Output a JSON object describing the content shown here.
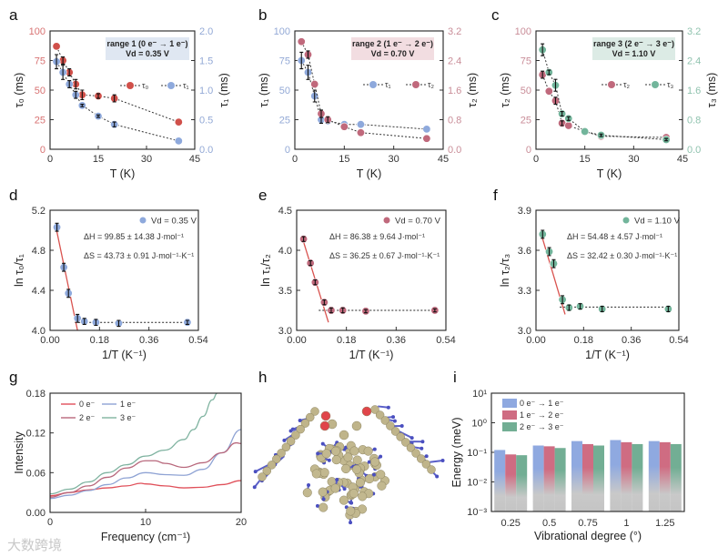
{
  "watermark": "大数跨境",
  "molecule_panel": {
    "label": "h"
  },
  "colors": {
    "red": "#d0504a",
    "blue": "#8ea9dc",
    "pink": "#c0697c",
    "green": "#72b59b"
  },
  "chart_data": [
    {
      "panel": "a",
      "type": "scatter",
      "xlabel": "T (K)",
      "ylabel": "τ₀ (ms)",
      "ylabel_right": "τ₁ (ms)",
      "xlim": [
        0,
        45
      ],
      "ylim": [
        0,
        100
      ],
      "ylim_right": [
        0,
        2
      ],
      "xticks": [
        "0",
        "15",
        "30",
        "45"
      ],
      "yticks": [
        "0",
        "25",
        "50",
        "75",
        "100"
      ],
      "yticks_right": [
        "0.0",
        "0.5",
        "1.0",
        "1.5",
        "2.0"
      ],
      "axis_colors": {
        "left": "#d87272",
        "right": "#93a9d6"
      },
      "annotation": [
        "range 1 (0 e⁻ → 1 e⁻)",
        "Vd = 0.35 V"
      ],
      "annotation_bg": "#dfe7f2",
      "series": [
        {
          "name": "τ₀",
          "axis": "left",
          "color": "#d0504a",
          "x": [
            2,
            4,
            6,
            8,
            10,
            15,
            20,
            40
          ],
          "y": [
            87,
            75,
            65,
            55,
            46,
            45,
            43,
            23
          ],
          "err": [
            0,
            3,
            3,
            4,
            4,
            2,
            3,
            0
          ]
        },
        {
          "name": "τ₁",
          "axis": "right",
          "color": "#8ea9dc",
          "x": [
            2,
            4,
            6,
            8,
            10,
            15,
            20,
            40
          ],
          "y": [
            1.48,
            1.3,
            1.1,
            0.92,
            0.74,
            0.56,
            0.42,
            0.14
          ],
          "err": [
            0.12,
            0.12,
            0.06,
            0.06,
            0.02,
            0.02,
            0.04,
            0
          ]
        }
      ]
    },
    {
      "panel": "b",
      "type": "scatter",
      "xlabel": "T (K)",
      "ylabel": "τ₁ (ms)",
      "ylabel_right": "τ₂ (ms)",
      "xlim": [
        0,
        45
      ],
      "ylim": [
        0,
        100
      ],
      "ylim_right": [
        0,
        3.2
      ],
      "xticks": [
        "0",
        "15",
        "30",
        "45"
      ],
      "yticks": [
        "0",
        "25",
        "50",
        "75",
        "100"
      ],
      "yticks_right": [
        "0.0",
        "0.8",
        "1.6",
        "2.4",
        "3.2"
      ],
      "axis_colors": {
        "left": "#93a9d6",
        "right": "#c98d98"
      },
      "annotation": [
        "range 2 (1 e⁻ → 2 e⁻)",
        "Vd = 0.70 V"
      ],
      "annotation_bg": "#f2dde1",
      "series": [
        {
          "name": "τ₁",
          "axis": "left",
          "color": "#8ea9dc",
          "x": [
            2,
            4,
            6,
            8,
            10,
            15,
            20,
            40
          ],
          "y": [
            75,
            65,
            45,
            25,
            24,
            21,
            21,
            17
          ],
          "err": [
            7,
            6,
            5,
            3,
            2,
            0,
            0,
            0
          ]
        },
        {
          "name": "τ₂",
          "axis": "right",
          "color": "#c0697c",
          "x": [
            2,
            4,
            6,
            8,
            10,
            15,
            20,
            40
          ],
          "y": [
            2.91,
            2.56,
            1.76,
            0.96,
            0.8,
            0.61,
            0.45,
            0.29
          ],
          "err": [
            0,
            0.1,
            0,
            0.1,
            0.08,
            0,
            0,
            0
          ]
        }
      ]
    },
    {
      "panel": "c",
      "type": "scatter",
      "xlabel": "T (K)",
      "ylabel": "τ₂ (ms)",
      "ylabel_right": "τ₃ (ms)",
      "xlim": [
        0,
        45
      ],
      "ylim": [
        0,
        100
      ],
      "ylim_right": [
        0,
        3.2
      ],
      "xticks": [
        "0",
        "15",
        "30",
        "45"
      ],
      "yticks": [
        "0",
        "25",
        "50",
        "75",
        "100"
      ],
      "yticks_right": [
        "0.0",
        "0.8",
        "1.6",
        "2.4",
        "3.2"
      ],
      "axis_colors": {
        "left": "#c98d98",
        "right": "#8fc2ae"
      },
      "annotation": [
        "range 3 (2 e⁻ → 3 e⁻)",
        "Vd = 1.10 V"
      ],
      "annotation_bg": "#dcebe5",
      "series": [
        {
          "name": "τ₂",
          "axis": "left",
          "color": "#c0697c",
          "x": [
            2,
            4,
            6,
            8,
            10,
            15,
            20,
            40
          ],
          "y": [
            63,
            49,
            41,
            22,
            20,
            15,
            11,
            10
          ],
          "err": [
            3,
            0,
            3,
            2,
            0,
            0,
            0,
            0
          ]
        },
        {
          "name": "τ₃",
          "axis": "right",
          "color": "#72b59b",
          "x": [
            2,
            4,
            6,
            8,
            10,
            15,
            20,
            40
          ],
          "y": [
            2.69,
            2.08,
            1.73,
            0.96,
            0.83,
            0.48,
            0.38,
            0.26
          ],
          "err": [
            0.16,
            0.06,
            0.16,
            0.06,
            0.05,
            0,
            0.03,
            0.03
          ]
        }
      ]
    },
    {
      "panel": "d",
      "type": "scatter",
      "xlabel": "1/T (K⁻¹)",
      "ylabel": "ln τ₀/τ₁",
      "xlim": [
        0,
        0.54
      ],
      "ylim": [
        4.0,
        5.2
      ],
      "xticks": [
        "0.00",
        "0.18",
        "0.36",
        "0.54"
      ],
      "yticks": [
        "4.0",
        "4.4",
        "4.8",
        "5.2"
      ],
      "legend": "Vd = 0.35 V",
      "annotation": [
        "ΔH = 99.85 ± 14.38 J·mol⁻¹",
        "ΔS = 43.73 ± 0.91 J·mol⁻¹·K⁻¹"
      ],
      "series": [
        {
          "name": "Vd = 0.35 V",
          "color": "#8ea9dc",
          "x": [
            0.025,
            0.05,
            0.067,
            0.1,
            0.125,
            0.167,
            0.25,
            0.5
          ],
          "y": [
            5.03,
            4.63,
            4.37,
            4.12,
            4.09,
            4.08,
            4.07,
            4.08
          ],
          "err": [
            0.04,
            0.04,
            0.04,
            0.04,
            0.03,
            0.03,
            0.03,
            0.02
          ]
        }
      ],
      "fit": {
        "line": [
          [
            0.02,
            5.05
          ],
          [
            0.1,
            4.0
          ]
        ],
        "plateau": [
          [
            0.09,
            4.08
          ],
          [
            0.5,
            4.08
          ]
        ]
      }
    },
    {
      "panel": "e",
      "type": "scatter",
      "xlabel": "1/T (K⁻¹)",
      "ylabel": "ln τ₁/τ₂",
      "xlim": [
        0,
        0.54
      ],
      "ylim": [
        3.0,
        4.5
      ],
      "xticks": [
        "0.00",
        "0.18",
        "0.36",
        "0.54"
      ],
      "yticks": [
        "3.0",
        "3.5",
        "4.0",
        "4.5"
      ],
      "legend": "Vd = 0.70 V",
      "annotation": [
        "ΔH = 86.38 ± 9.64 J·mol⁻¹",
        "ΔS = 36.25 ± 0.67 J·mol⁻¹·K⁻¹"
      ],
      "series": [
        {
          "name": "Vd = 0.70 V",
          "color": "#c0697c",
          "x": [
            0.025,
            0.05,
            0.067,
            0.1,
            0.125,
            0.167,
            0.25,
            0.5
          ],
          "y": [
            4.14,
            3.84,
            3.6,
            3.35,
            3.25,
            3.25,
            3.24,
            3.25
          ],
          "err": [
            0.03,
            0.03,
            0.03,
            0.03,
            0.03,
            0.03,
            0.02,
            0.02
          ]
        }
      ],
      "fit": {
        "line": [
          [
            0.02,
            4.16
          ],
          [
            0.115,
            3.1
          ]
        ],
        "plateau": [
          [
            0.08,
            3.25
          ],
          [
            0.5,
            3.25
          ]
        ]
      }
    },
    {
      "panel": "f",
      "type": "scatter",
      "xlabel": "1/T (K⁻¹)",
      "ylabel": "ln τ₂/τ₃",
      "xlim": [
        0,
        0.54
      ],
      "ylim": [
        3.0,
        3.9
      ],
      "xticks": [
        "0.00",
        "0.18",
        "0.36",
        "0.54"
      ],
      "yticks": [
        "3.0",
        "3.3",
        "3.6",
        "3.9"
      ],
      "legend": "Vd = 1.10 V",
      "annotation": [
        "ΔH = 54.48 ± 4.57 J·mol⁻¹",
        "ΔS = 32.42 ± 0.30 J·mol⁻¹·K⁻¹"
      ],
      "series": [
        {
          "name": "Vd = 1.10 V",
          "color": "#72b59b",
          "x": [
            0.025,
            0.05,
            0.067,
            0.1,
            0.125,
            0.167,
            0.25,
            0.5
          ],
          "y": [
            3.72,
            3.59,
            3.5,
            3.23,
            3.17,
            3.18,
            3.16,
            3.16
          ],
          "err": [
            0.03,
            0.03,
            0.03,
            0.03,
            0.02,
            0.02,
            0.02,
            0.02
          ]
        }
      ],
      "fit": {
        "line": [
          [
            0.02,
            3.72
          ],
          [
            0.11,
            3.12
          ]
        ],
        "plateau": [
          [
            0.09,
            3.175
          ],
          [
            0.5,
            3.175
          ]
        ]
      }
    },
    {
      "panel": "g",
      "type": "line",
      "xlabel": "Frequency (cm⁻¹)",
      "ylabel": "Intensity",
      "xlim": [
        0,
        20
      ],
      "ylim": [
        0,
        0.18
      ],
      "xticks": [
        "0",
        "10",
        "20"
      ],
      "yticks": [
        "0.00",
        "0.06",
        "0.12",
        "0.18"
      ],
      "series": [
        {
          "name": "0 e⁻",
          "color": "#e0505a",
          "x": [
            0,
            2,
            4,
            6,
            8,
            9.5,
            10,
            12,
            14,
            16,
            18,
            20
          ],
          "y": [
            0.025,
            0.03,
            0.034,
            0.037,
            0.04,
            0.044,
            0.043,
            0.04,
            0.037,
            0.038,
            0.042,
            0.048
          ]
        },
        {
          "name": "1 e⁻",
          "color": "#8fa3d4",
          "x": [
            0,
            2,
            4,
            6,
            8,
            10,
            12,
            14,
            16,
            18,
            20
          ],
          "y": [
            0.021,
            0.026,
            0.033,
            0.042,
            0.052,
            0.06,
            0.057,
            0.056,
            0.065,
            0.09,
            0.125
          ]
        },
        {
          "name": "2 e⁻",
          "color": "#b8687c",
          "x": [
            0,
            2,
            4,
            6,
            8,
            10,
            11,
            12,
            14,
            16,
            18,
            19.5,
            20
          ],
          "y": [
            0.023,
            0.03,
            0.04,
            0.053,
            0.067,
            0.078,
            0.078,
            0.074,
            0.068,
            0.075,
            0.09,
            0.105,
            0.104
          ]
        },
        {
          "name": "3 e⁻",
          "color": "#7fb3a0",
          "x": [
            0,
            2,
            4,
            6,
            8,
            10,
            12,
            14,
            15,
            16,
            17,
            17.5
          ],
          "y": [
            0.028,
            0.035,
            0.046,
            0.06,
            0.072,
            0.085,
            0.094,
            0.11,
            0.125,
            0.145,
            0.17,
            0.18
          ]
        }
      ]
    },
    {
      "panel": "i",
      "type": "bar",
      "yscale": "log",
      "xlabel": "Vibrational degree (°)",
      "ylabel": "Energy (meV)",
      "categories": [
        "0.25",
        "0.5",
        "0.75",
        "1",
        "1.25"
      ],
      "ylim": [
        0.001,
        10
      ],
      "yticks": [
        "10⁻³",
        "10⁻²",
        "10⁻¹",
        "10⁰",
        "10¹"
      ],
      "series": [
        {
          "name": "0 e⁻ → 1 e⁻",
          "color": "#8fa9e0",
          "values": [
            0.12,
            0.17,
            0.24,
            0.26,
            0.24
          ]
        },
        {
          "name": "1 e⁻ → 2 e⁻",
          "color": "#cf6c82",
          "values": [
            0.085,
            0.16,
            0.19,
            0.22,
            0.22
          ]
        },
        {
          "name": "2 e⁻ → 3 e⁻",
          "color": "#72ae94",
          "values": [
            0.08,
            0.14,
            0.17,
            0.19,
            0.19
          ]
        }
      ]
    }
  ]
}
